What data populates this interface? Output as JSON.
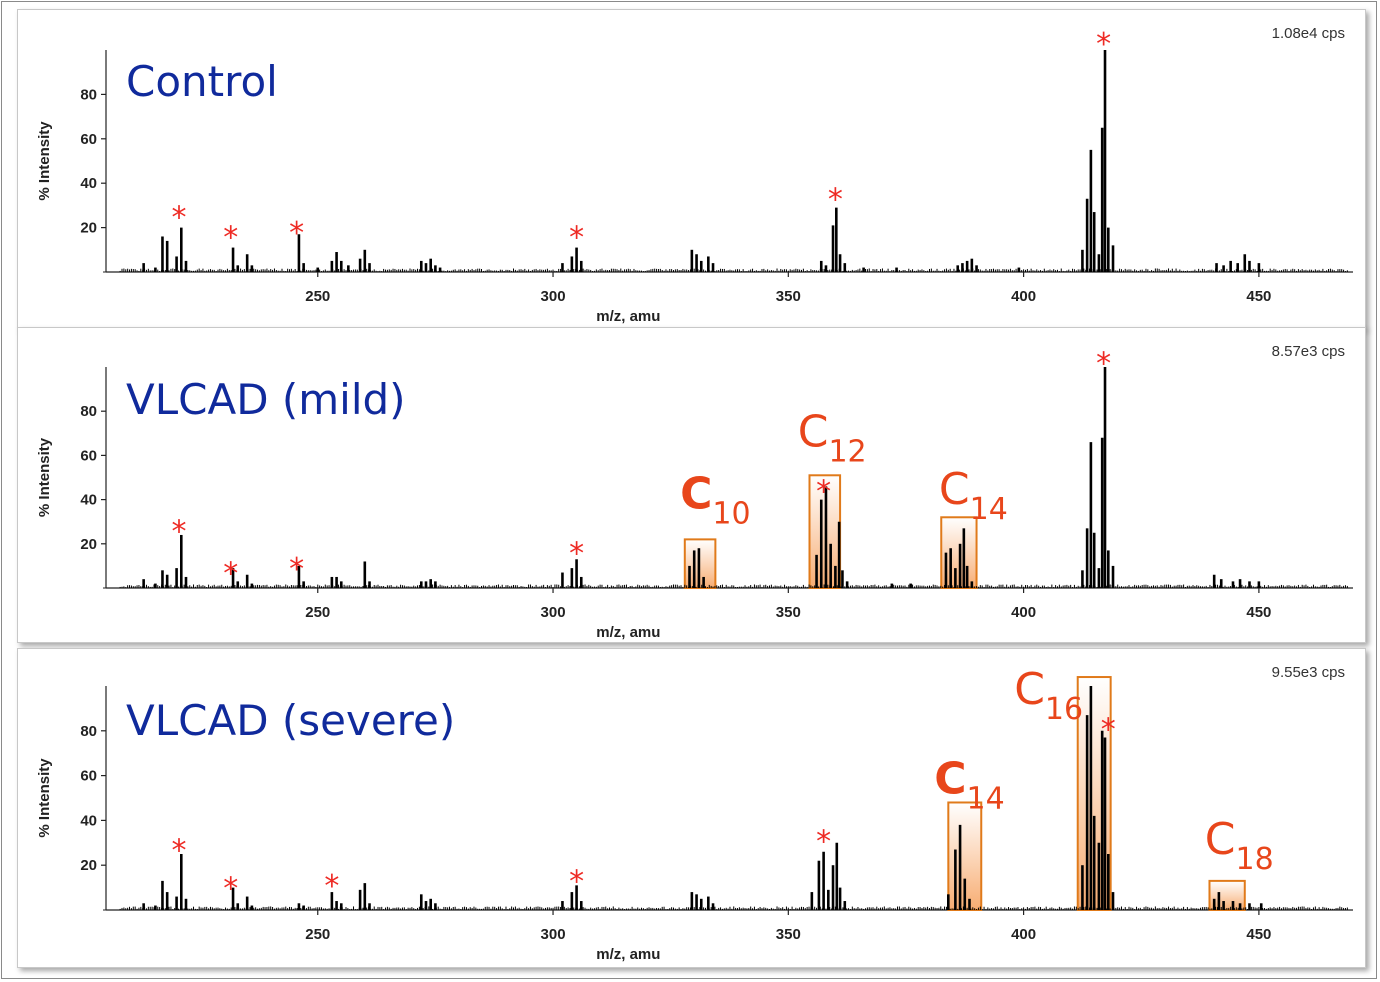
{
  "colors": {
    "sample_label": "#102a9c",
    "asterisk": "#ee2a24",
    "chain_label": "#e8461b",
    "box_stroke": "#e07a1a",
    "box_fill": "#f7a86a",
    "peaks": "#000000"
  },
  "chart_data": [
    {
      "type": "bar",
      "title": "Control",
      "intensity_label": "1.08e4 cps",
      "xlabel": "m/z, amu",
      "ylabel": "% Intensity",
      "xlim": [
        205,
        470
      ],
      "ylim": [
        0,
        100
      ],
      "xticks": [
        250,
        300,
        350,
        400,
        450
      ],
      "yticks": [
        20,
        40,
        60,
        80
      ],
      "grid": false,
      "peaks": [
        {
          "x": 213.0,
          "y": 4
        },
        {
          "x": 215.5,
          "y": 2
        },
        {
          "x": 217.0,
          "y": 16
        },
        {
          "x": 218.0,
          "y": 14
        },
        {
          "x": 220.0,
          "y": 7
        },
        {
          "x": 221.0,
          "y": 20
        },
        {
          "x": 222.0,
          "y": 5
        },
        {
          "x": 232.0,
          "y": 11
        },
        {
          "x": 233.0,
          "y": 3
        },
        {
          "x": 235.0,
          "y": 8
        },
        {
          "x": 236.0,
          "y": 3
        },
        {
          "x": 246.0,
          "y": 17
        },
        {
          "x": 247.0,
          "y": 4
        },
        {
          "x": 250.0,
          "y": 2
        },
        {
          "x": 253.0,
          "y": 5
        },
        {
          "x": 254.0,
          "y": 9
        },
        {
          "x": 255.0,
          "y": 5
        },
        {
          "x": 256.5,
          "y": 3
        },
        {
          "x": 259.0,
          "y": 6
        },
        {
          "x": 260.0,
          "y": 10
        },
        {
          "x": 261.0,
          "y": 4
        },
        {
          "x": 272.0,
          "y": 5
        },
        {
          "x": 273.0,
          "y": 4
        },
        {
          "x": 274.0,
          "y": 6
        },
        {
          "x": 275.0,
          "y": 3
        },
        {
          "x": 276.0,
          "y": 2
        },
        {
          "x": 302.0,
          "y": 4
        },
        {
          "x": 304.0,
          "y": 7
        },
        {
          "x": 305.0,
          "y": 11
        },
        {
          "x": 306.0,
          "y": 5
        },
        {
          "x": 329.5,
          "y": 10
        },
        {
          "x": 330.5,
          "y": 8
        },
        {
          "x": 331.5,
          "y": 5
        },
        {
          "x": 333.0,
          "y": 7
        },
        {
          "x": 334.0,
          "y": 4
        },
        {
          "x": 357.0,
          "y": 5
        },
        {
          "x": 358.0,
          "y": 3
        },
        {
          "x": 359.5,
          "y": 21
        },
        {
          "x": 360.2,
          "y": 29
        },
        {
          "x": 361.0,
          "y": 8
        },
        {
          "x": 362.0,
          "y": 4
        },
        {
          "x": 366.0,
          "y": 2
        },
        {
          "x": 373.0,
          "y": 2
        },
        {
          "x": 386.0,
          "y": 3
        },
        {
          "x": 387.0,
          "y": 4
        },
        {
          "x": 388.0,
          "y": 5
        },
        {
          "x": 389.0,
          "y": 6
        },
        {
          "x": 390.0,
          "y": 3
        },
        {
          "x": 399.0,
          "y": 2
        },
        {
          "x": 412.5,
          "y": 10
        },
        {
          "x": 413.5,
          "y": 33
        },
        {
          "x": 414.3,
          "y": 55
        },
        {
          "x": 415.0,
          "y": 27
        },
        {
          "x": 416.0,
          "y": 8
        },
        {
          "x": 416.7,
          "y": 65
        },
        {
          "x": 417.3,
          "y": 100
        },
        {
          "x": 418.0,
          "y": 20
        },
        {
          "x": 419.0,
          "y": 12
        },
        {
          "x": 441.0,
          "y": 4
        },
        {
          "x": 442.5,
          "y": 3
        },
        {
          "x": 444.0,
          "y": 5
        },
        {
          "x": 445.5,
          "y": 4
        },
        {
          "x": 447.0,
          "y": 8
        },
        {
          "x": 448.0,
          "y": 5
        },
        {
          "x": 450.0,
          "y": 4
        }
      ],
      "asterisks": [
        {
          "x": 220.5,
          "y": 30
        },
        {
          "x": 231.5,
          "y": 21
        },
        {
          "x": 245.5,
          "y": 23
        },
        {
          "x": 305.0,
          "y": 21
        },
        {
          "x": 360.0,
          "y": 38
        },
        {
          "x": 417.0,
          "y": 108
        }
      ],
      "chain_boxes": []
    },
    {
      "type": "bar",
      "title": "VLCAD (mild)",
      "intensity_label": "8.57e3 cps",
      "xlabel": "m/z, amu",
      "ylabel": "% Intensity",
      "xlim": [
        205,
        470
      ],
      "ylim": [
        0,
        100
      ],
      "xticks": [
        250,
        300,
        350,
        400,
        450
      ],
      "yticks": [
        20,
        40,
        60,
        80
      ],
      "grid": false,
      "peaks": [
        {
          "x": 213.0,
          "y": 4
        },
        {
          "x": 215.5,
          "y": 2
        },
        {
          "x": 217.0,
          "y": 8
        },
        {
          "x": 218.0,
          "y": 6
        },
        {
          "x": 220.0,
          "y": 9
        },
        {
          "x": 221.0,
          "y": 24
        },
        {
          "x": 222.0,
          "y": 5
        },
        {
          "x": 232.0,
          "y": 9
        },
        {
          "x": 233.0,
          "y": 3
        },
        {
          "x": 235.0,
          "y": 6
        },
        {
          "x": 236.0,
          "y": 2
        },
        {
          "x": 246.0,
          "y": 10
        },
        {
          "x": 247.0,
          "y": 3
        },
        {
          "x": 253.0,
          "y": 5
        },
        {
          "x": 254.0,
          "y": 5
        },
        {
          "x": 255.0,
          "y": 3
        },
        {
          "x": 260.0,
          "y": 12
        },
        {
          "x": 261.0,
          "y": 3
        },
        {
          "x": 272.0,
          "y": 3
        },
        {
          "x": 273.0,
          "y": 3
        },
        {
          "x": 274.0,
          "y": 4
        },
        {
          "x": 275.0,
          "y": 3
        },
        {
          "x": 302.0,
          "y": 7
        },
        {
          "x": 304.0,
          "y": 9
        },
        {
          "x": 305.0,
          "y": 13
        },
        {
          "x": 306.0,
          "y": 5
        },
        {
          "x": 329.0,
          "y": 10
        },
        {
          "x": 330.0,
          "y": 17
        },
        {
          "x": 331.0,
          "y": 18
        },
        {
          "x": 332.0,
          "y": 5
        },
        {
          "x": 356.0,
          "y": 15
        },
        {
          "x": 357.0,
          "y": 40
        },
        {
          "x": 358.0,
          "y": 46
        },
        {
          "x": 359.0,
          "y": 20
        },
        {
          "x": 360.0,
          "y": 10
        },
        {
          "x": 360.8,
          "y": 30
        },
        {
          "x": 361.5,
          "y": 8
        },
        {
          "x": 362.5,
          "y": 3
        },
        {
          "x": 372.0,
          "y": 2
        },
        {
          "x": 376.0,
          "y": 2
        },
        {
          "x": 383.5,
          "y": 16
        },
        {
          "x": 384.5,
          "y": 18
        },
        {
          "x": 385.5,
          "y": 9
        },
        {
          "x": 386.5,
          "y": 20
        },
        {
          "x": 387.3,
          "y": 27
        },
        {
          "x": 388.0,
          "y": 10
        },
        {
          "x": 389.0,
          "y": 3
        },
        {
          "x": 412.5,
          "y": 8
        },
        {
          "x": 413.5,
          "y": 27
        },
        {
          "x": 414.3,
          "y": 66
        },
        {
          "x": 415.0,
          "y": 25
        },
        {
          "x": 416.0,
          "y": 9
        },
        {
          "x": 416.7,
          "y": 68
        },
        {
          "x": 417.3,
          "y": 100
        },
        {
          "x": 418.0,
          "y": 17
        },
        {
          "x": 419.0,
          "y": 10
        },
        {
          "x": 440.5,
          "y": 6
        },
        {
          "x": 442.0,
          "y": 4
        },
        {
          "x": 444.5,
          "y": 3
        },
        {
          "x": 446.0,
          "y": 4
        },
        {
          "x": 448.0,
          "y": 3
        },
        {
          "x": 450.0,
          "y": 3
        }
      ],
      "asterisks": [
        {
          "x": 220.5,
          "y": 31
        },
        {
          "x": 231.5,
          "y": 12
        },
        {
          "x": 245.5,
          "y": 14
        },
        {
          "x": 305.0,
          "y": 21
        },
        {
          "x": 357.5,
          "y": 49
        },
        {
          "x": 417.0,
          "y": 107
        }
      ],
      "chain_boxes": [
        {
          "label": "C",
          "subscript": "10",
          "x0": 328.0,
          "x1": 334.5,
          "ytop": 22,
          "label_x": 327.0,
          "label_y": 36,
          "bold": true
        },
        {
          "label": "C",
          "subscript": "12",
          "x0": 354.5,
          "x1": 361.0,
          "ytop": 51,
          "label_x": 352.0,
          "label_y": 64,
          "bold": false
        },
        {
          "label": "C",
          "subscript": "14",
          "x0": 382.5,
          "x1": 390.0,
          "ytop": 32,
          "label_x": 382.0,
          "label_y": 38,
          "bold": false
        }
      ]
    },
    {
      "type": "bar",
      "title": "VLCAD (severe)",
      "intensity_label": "9.55e3 cps",
      "xlabel": "m/z, amu",
      "ylabel": "% Intensity",
      "xlim": [
        205,
        470
      ],
      "ylim": [
        0,
        100
      ],
      "xticks": [
        250,
        300,
        350,
        400,
        450
      ],
      "yticks": [
        20,
        40,
        60,
        80
      ],
      "grid": false,
      "peaks": [
        {
          "x": 213.0,
          "y": 3
        },
        {
          "x": 215.5,
          "y": 2
        },
        {
          "x": 217.0,
          "y": 13
        },
        {
          "x": 218.0,
          "y": 8
        },
        {
          "x": 220.0,
          "y": 6
        },
        {
          "x": 221.0,
          "y": 25
        },
        {
          "x": 222.0,
          "y": 5
        },
        {
          "x": 232.0,
          "y": 10
        },
        {
          "x": 233.0,
          "y": 3
        },
        {
          "x": 235.0,
          "y": 6
        },
        {
          "x": 236.0,
          "y": 2
        },
        {
          "x": 246.0,
          "y": 3
        },
        {
          "x": 247.0,
          "y": 2
        },
        {
          "x": 253.0,
          "y": 8
        },
        {
          "x": 254.0,
          "y": 4
        },
        {
          "x": 255.0,
          "y": 3
        },
        {
          "x": 259.0,
          "y": 9
        },
        {
          "x": 260.0,
          "y": 12
        },
        {
          "x": 261.0,
          "y": 3
        },
        {
          "x": 272.0,
          "y": 7
        },
        {
          "x": 273.0,
          "y": 4
        },
        {
          "x": 274.0,
          "y": 5
        },
        {
          "x": 275.0,
          "y": 3
        },
        {
          "x": 302.0,
          "y": 4
        },
        {
          "x": 304.0,
          "y": 8
        },
        {
          "x": 305.0,
          "y": 11
        },
        {
          "x": 306.0,
          "y": 4
        },
        {
          "x": 329.5,
          "y": 8
        },
        {
          "x": 330.5,
          "y": 7
        },
        {
          "x": 331.5,
          "y": 5
        },
        {
          "x": 333.0,
          "y": 6
        },
        {
          "x": 334.0,
          "y": 3
        },
        {
          "x": 355.0,
          "y": 8
        },
        {
          "x": 356.5,
          "y": 22
        },
        {
          "x": 357.5,
          "y": 26
        },
        {
          "x": 358.5,
          "y": 9
        },
        {
          "x": 359.5,
          "y": 20
        },
        {
          "x": 360.3,
          "y": 30
        },
        {
          "x": 361.0,
          "y": 10
        },
        {
          "x": 362.0,
          "y": 4
        },
        {
          "x": 384.0,
          "y": 7
        },
        {
          "x": 385.5,
          "y": 27
        },
        {
          "x": 386.5,
          "y": 38
        },
        {
          "x": 387.5,
          "y": 14
        },
        {
          "x": 388.5,
          "y": 5
        },
        {
          "x": 412.5,
          "y": 20
        },
        {
          "x": 413.5,
          "y": 87
        },
        {
          "x": 414.3,
          "y": 100
        },
        {
          "x": 415.0,
          "y": 42
        },
        {
          "x": 416.0,
          "y": 30
        },
        {
          "x": 416.7,
          "y": 80
        },
        {
          "x": 417.3,
          "y": 77
        },
        {
          "x": 418.0,
          "y": 25
        },
        {
          "x": 419.0,
          "y": 8
        },
        {
          "x": 440.5,
          "y": 5
        },
        {
          "x": 441.5,
          "y": 8
        },
        {
          "x": 442.5,
          "y": 4
        },
        {
          "x": 444.5,
          "y": 4
        },
        {
          "x": 446.0,
          "y": 3
        },
        {
          "x": 448.0,
          "y": 3
        },
        {
          "x": 450.5,
          "y": 3
        }
      ],
      "asterisks": [
        {
          "x": 220.5,
          "y": 32
        },
        {
          "x": 231.5,
          "y": 15
        },
        {
          "x": 253.0,
          "y": 16
        },
        {
          "x": 305.0,
          "y": 18
        },
        {
          "x": 357.5,
          "y": 36
        },
        {
          "x": 418.0,
          "y": 86
        }
      ],
      "chain_boxes": [
        {
          "label": "C",
          "subscript": "14",
          "x0": 384.0,
          "x1": 391.0,
          "ytop": 48,
          "label_x": 381.0,
          "label_y": 52,
          "bold": true
        },
        {
          "label": "C",
          "subscript": "16",
          "x0": 411.5,
          "x1": 418.5,
          "ytop": 104,
          "label_x": 398.0,
          "label_y": 92,
          "bold": false
        },
        {
          "label": "C",
          "subscript": "18",
          "x0": 439.5,
          "x1": 447.0,
          "ytop": 13,
          "label_x": 438.5,
          "label_y": 25,
          "bold": false
        }
      ]
    }
  ]
}
